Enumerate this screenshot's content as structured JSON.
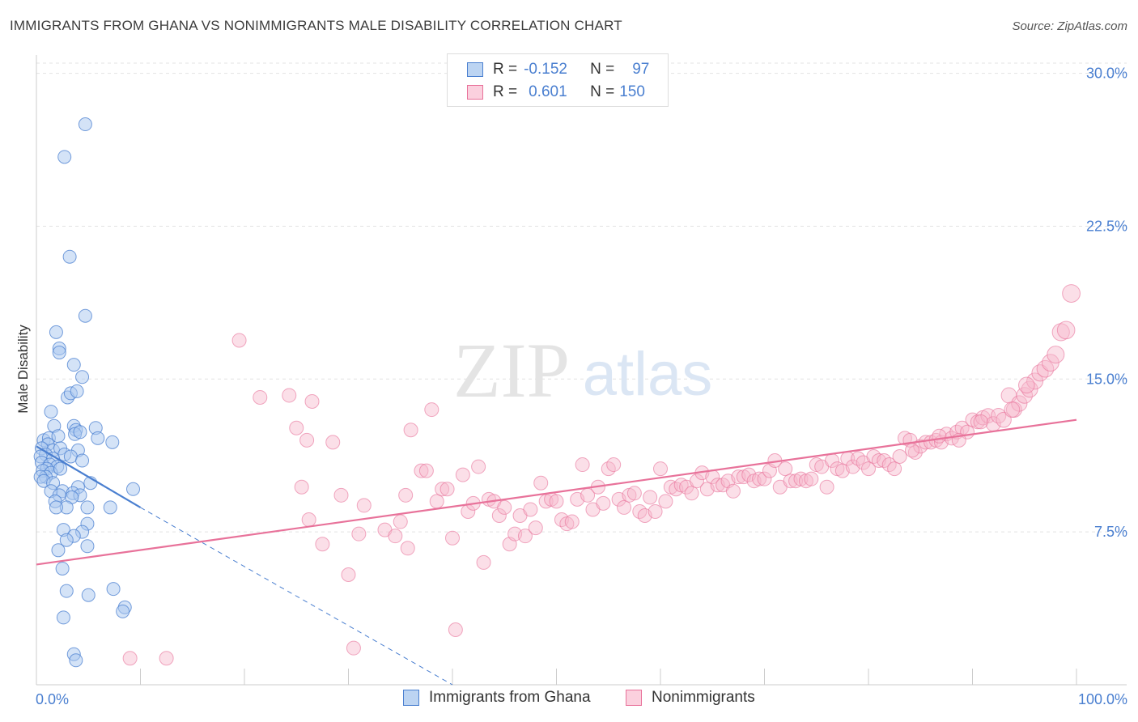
{
  "header": {
    "title": "IMMIGRANTS FROM GHANA VS NONIMMIGRANTS MALE DISABILITY CORRELATION CHART",
    "source": "Source: ZipAtlas.com"
  },
  "watermark": {
    "zip": "ZIP",
    "atlas": "atlas"
  },
  "legend": {
    "r_label": "R =",
    "n_label": "N =",
    "rows": [
      {
        "r": "-0.152",
        "n": "97",
        "color": "#4a7fd0"
      },
      {
        "r": "0.601",
        "n": "150",
        "color": "#e8729a"
      }
    ]
  },
  "bottom_legend": [
    "Immigrants from Ghana",
    "Nonimmigrants"
  ],
  "chart_data": {
    "type": "scatter",
    "title": "IMMIGRANTS FROM GHANA VS NONIMMIGRANTS MALE DISABILITY CORRELATION CHART",
    "xlabel": "",
    "ylabel": "Male Disability",
    "xlim": [
      0,
      100
    ],
    "ylim": [
      0,
      30.5
    ],
    "x_tick_labels": [
      "0.0%",
      "100.0%"
    ],
    "y_ticks": [
      7.5,
      15.0,
      22.5,
      30.0
    ],
    "y_tick_labels": [
      "7.5%",
      "15.0%",
      "22.5%",
      "30.0%"
    ],
    "grid": "horizontal dashed",
    "legend_position": "top-center",
    "series": [
      {
        "name": "Immigrants from Ghana",
        "color": "#4a7fd0",
        "fill": "#a9c8ef",
        "r": -0.152,
        "n": 97,
        "trend": {
          "x": [
            0,
            10
          ],
          "y": [
            11.7,
            8.7
          ],
          "dashed_to": [
            40,
            0
          ]
        },
        "points": [
          [
            4.7,
            27.5
          ],
          [
            2.7,
            25.9
          ],
          [
            3.2,
            21.0
          ],
          [
            4.7,
            18.1
          ],
          [
            1.9,
            17.3
          ],
          [
            2.2,
            16.5
          ],
          [
            2.2,
            16.3
          ],
          [
            3.6,
            15.7
          ],
          [
            4.4,
            15.1
          ],
          [
            3.0,
            14.1
          ],
          [
            3.3,
            14.3
          ],
          [
            3.9,
            14.4
          ],
          [
            1.4,
            13.4
          ],
          [
            1.7,
            12.7
          ],
          [
            3.6,
            12.7
          ],
          [
            3.8,
            12.5
          ],
          [
            5.7,
            12.6
          ],
          [
            3.7,
            12.3
          ],
          [
            4.2,
            12.4
          ],
          [
            5.9,
            12.1
          ],
          [
            7.3,
            11.9
          ],
          [
            0.7,
            12.0
          ],
          [
            1.2,
            12.1
          ],
          [
            2.1,
            12.2
          ],
          [
            1.1,
            11.8
          ],
          [
            0.5,
            11.6
          ],
          [
            1.6,
            11.5
          ],
          [
            2.3,
            11.6
          ],
          [
            0.9,
            11.3
          ],
          [
            2.7,
            11.3
          ],
          [
            4.0,
            11.5
          ],
          [
            0.4,
            11.2
          ],
          [
            1.6,
            11.1
          ],
          [
            3.3,
            11.2
          ],
          [
            4.4,
            11.0
          ],
          [
            0.5,
            10.9
          ],
          [
            1.3,
            10.8
          ],
          [
            2.0,
            10.7
          ],
          [
            1.0,
            10.6
          ],
          [
            0.6,
            10.5
          ],
          [
            1.4,
            10.4
          ],
          [
            2.3,
            10.6
          ],
          [
            0.9,
            10.2
          ],
          [
            0.4,
            10.2
          ],
          [
            0.7,
            10.0
          ],
          [
            1.6,
            9.9
          ],
          [
            5.2,
            9.9
          ],
          [
            4.0,
            9.7
          ],
          [
            2.5,
            9.5
          ],
          [
            1.4,
            9.5
          ],
          [
            2.2,
            9.3
          ],
          [
            3.5,
            9.4
          ],
          [
            4.2,
            9.3
          ],
          [
            9.3,
            9.6
          ],
          [
            3.4,
            9.2
          ],
          [
            1.8,
            9.0
          ],
          [
            2.9,
            8.7
          ],
          [
            1.9,
            8.7
          ],
          [
            4.9,
            8.7
          ],
          [
            7.1,
            8.7
          ],
          [
            4.9,
            7.9
          ],
          [
            2.6,
            7.6
          ],
          [
            4.4,
            7.5
          ],
          [
            3.6,
            7.3
          ],
          [
            2.9,
            7.1
          ],
          [
            4.9,
            6.8
          ],
          [
            2.1,
            6.6
          ],
          [
            2.5,
            5.7
          ],
          [
            2.9,
            4.6
          ],
          [
            5.0,
            4.4
          ],
          [
            7.4,
            4.7
          ],
          [
            8.5,
            3.8
          ],
          [
            8.3,
            3.6
          ],
          [
            2.6,
            3.3
          ],
          [
            3.6,
            1.5
          ],
          [
            3.8,
            1.2
          ]
        ]
      },
      {
        "name": "Nonimmigrants",
        "color": "#e8729a",
        "fill": "#f6b8cd",
        "r": 0.601,
        "n": 150,
        "trend": {
          "x": [
            0,
            100
          ],
          "y": [
            5.9,
            13.0
          ]
        },
        "points": [
          [
            9.0,
            1.3
          ],
          [
            12.5,
            1.3
          ],
          [
            19.5,
            16.9
          ],
          [
            21.5,
            14.1
          ],
          [
            24.3,
            14.2
          ],
          [
            26.5,
            13.9
          ],
          [
            25.0,
            12.6
          ],
          [
            26.0,
            12.0
          ],
          [
            28.5,
            11.9
          ],
          [
            25.5,
            9.7
          ],
          [
            26.2,
            8.1
          ],
          [
            27.5,
            6.9
          ],
          [
            29.3,
            9.3
          ],
          [
            30.0,
            5.4
          ],
          [
            31.0,
            7.4
          ],
          [
            31.5,
            8.8
          ],
          [
            30.5,
            1.8
          ],
          [
            33.5,
            7.6
          ],
          [
            34.5,
            7.3
          ],
          [
            35.0,
            8.0
          ],
          [
            35.7,
            6.7
          ],
          [
            35.5,
            9.3
          ],
          [
            36.0,
            12.5
          ],
          [
            37.0,
            10.5
          ],
          [
            37.5,
            10.5
          ],
          [
            38.0,
            13.5
          ],
          [
            38.5,
            9.0
          ],
          [
            39.0,
            9.6
          ],
          [
            39.5,
            9.6
          ],
          [
            40.0,
            7.2
          ],
          [
            40.3,
            2.7
          ],
          [
            41.0,
            10.3
          ],
          [
            41.5,
            8.5
          ],
          [
            42.0,
            8.9
          ],
          [
            42.5,
            10.7
          ],
          [
            43.0,
            6.0
          ],
          [
            43.5,
            9.1
          ],
          [
            44.0,
            9.0
          ],
          [
            44.5,
            8.3
          ],
          [
            45.0,
            8.7
          ],
          [
            45.5,
            6.9
          ],
          [
            46.0,
            7.4
          ],
          [
            46.5,
            8.3
          ],
          [
            47.0,
            7.3
          ],
          [
            47.5,
            8.6
          ],
          [
            48.0,
            7.7
          ],
          [
            48.5,
            9.9
          ],
          [
            49.0,
            9.0
          ],
          [
            49.5,
            9.1
          ],
          [
            50.0,
            9.0
          ],
          [
            50.5,
            8.1
          ],
          [
            51.0,
            7.9
          ],
          [
            51.5,
            8.0
          ],
          [
            52.0,
            9.1
          ],
          [
            52.5,
            10.8
          ],
          [
            53.0,
            9.3
          ],
          [
            53.5,
            8.6
          ],
          [
            54.0,
            9.7
          ],
          [
            54.5,
            8.9
          ],
          [
            55.0,
            10.6
          ],
          [
            55.5,
            10.8
          ],
          [
            56.0,
            9.1
          ],
          [
            56.5,
            8.7
          ],
          [
            57.0,
            9.3
          ],
          [
            57.5,
            9.4
          ],
          [
            58.0,
            8.5
          ],
          [
            58.5,
            8.3
          ],
          [
            59.0,
            9.2
          ],
          [
            59.5,
            8.5
          ],
          [
            60.0,
            10.6
          ],
          [
            60.5,
            9.0
          ],
          [
            61.0,
            9.7
          ],
          [
            61.5,
            9.6
          ],
          [
            62.0,
            9.8
          ],
          [
            62.5,
            9.7
          ],
          [
            63.0,
            9.4
          ],
          [
            63.5,
            10.0
          ],
          [
            64.0,
            10.4
          ],
          [
            64.5,
            9.6
          ],
          [
            65.0,
            10.2
          ],
          [
            65.5,
            9.8
          ],
          [
            66.0,
            9.8
          ],
          [
            66.5,
            10.0
          ],
          [
            67.0,
            9.5
          ],
          [
            67.5,
            10.2
          ],
          [
            68.0,
            10.2
          ],
          [
            68.5,
            10.3
          ],
          [
            69.0,
            10.0
          ],
          [
            69.5,
            10.1
          ],
          [
            70.0,
            10.1
          ],
          [
            70.5,
            10.5
          ],
          [
            71.0,
            11.0
          ],
          [
            71.5,
            9.7
          ],
          [
            72.0,
            10.6
          ],
          [
            72.5,
            10.0
          ],
          [
            73.0,
            10.0
          ],
          [
            73.5,
            10.1
          ],
          [
            74.0,
            10.0
          ],
          [
            74.5,
            10.1
          ],
          [
            75.0,
            10.8
          ],
          [
            75.5,
            10.7
          ],
          [
            76.0,
            9.7
          ],
          [
            76.5,
            11.0
          ],
          [
            77.0,
            10.6
          ],
          [
            77.5,
            10.5
          ],
          [
            78.0,
            11.1
          ],
          [
            78.5,
            10.7
          ],
          [
            79.0,
            11.1
          ],
          [
            79.5,
            10.9
          ],
          [
            80.0,
            10.6
          ],
          [
            80.5,
            11.2
          ],
          [
            81.0,
            11.0
          ],
          [
            81.5,
            11.0
          ],
          [
            82.0,
            10.8
          ],
          [
            82.5,
            10.6
          ],
          [
            83.0,
            11.2
          ],
          [
            83.5,
            12.1
          ],
          [
            84.0,
            12.0
          ],
          [
            84.5,
            11.4
          ],
          [
            85.0,
            11.7
          ],
          [
            85.5,
            11.9
          ],
          [
            86.0,
            11.9
          ],
          [
            86.5,
            12.0
          ],
          [
            87.0,
            11.9
          ],
          [
            87.5,
            12.3
          ],
          [
            88.0,
            12.1
          ],
          [
            88.5,
            12.4
          ],
          [
            89.0,
            12.6
          ],
          [
            89.5,
            12.4
          ],
          [
            90.0,
            13.0
          ],
          [
            90.5,
            12.9
          ],
          [
            91.0,
            13.1
          ],
          [
            91.5,
            13.2
          ],
          [
            92.0,
            12.8
          ],
          [
            92.5,
            13.2
          ],
          [
            93.0,
            13.0
          ],
          [
            93.5,
            14.2
          ],
          [
            94.0,
            13.5
          ],
          [
            94.5,
            13.8
          ],
          [
            95.0,
            14.2
          ],
          [
            95.5,
            14.5
          ],
          [
            96.0,
            14.9
          ],
          [
            96.5,
            15.3
          ],
          [
            97.0,
            15.5
          ],
          [
            97.5,
            15.8
          ],
          [
            98.0,
            16.2
          ],
          [
            98.5,
            17.3
          ],
          [
            99.0,
            17.4
          ],
          [
            99.5,
            19.2
          ],
          [
            88.7,
            12.0
          ],
          [
            84.2,
            11.5
          ],
          [
            86.8,
            12.2
          ],
          [
            90.8,
            12.9
          ],
          [
            93.8,
            13.5
          ],
          [
            95.2,
            14.7
          ]
        ]
      }
    ]
  }
}
